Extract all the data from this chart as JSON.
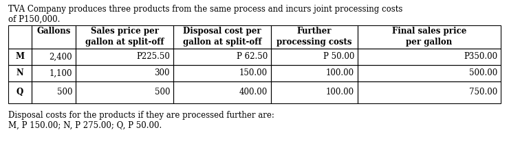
{
  "intro_line1": "TVA Company produces three products from the same process and incurs joint processing costs",
  "intro_line2": "of P150,000.",
  "col_headers": [
    "Gallons",
    "Sales price per\ngallon at split-off",
    "Disposal cost per\ngallon at split-off",
    "Further\nprocessing costs",
    "Final sales price\nper gallon"
  ],
  "row_labels": [
    "M",
    "N",
    "Q"
  ],
  "rows": [
    [
      "2,400",
      "P225.50",
      "P 62.50",
      "P 50.00",
      "P350.00"
    ],
    [
      "1,100",
      "300",
      "150.00",
      "100.00",
      "500.00"
    ],
    [
      "500",
      "500",
      "400.00",
      "100.00",
      "750.00"
    ]
  ],
  "footer_line1": "Disposal costs for the products if they are processed further are:",
  "footer_line2": "M, P 150.00; N, P 275.00; Q, P 50.00.",
  "bg_color": "#ffffff",
  "font_size": 8.5
}
